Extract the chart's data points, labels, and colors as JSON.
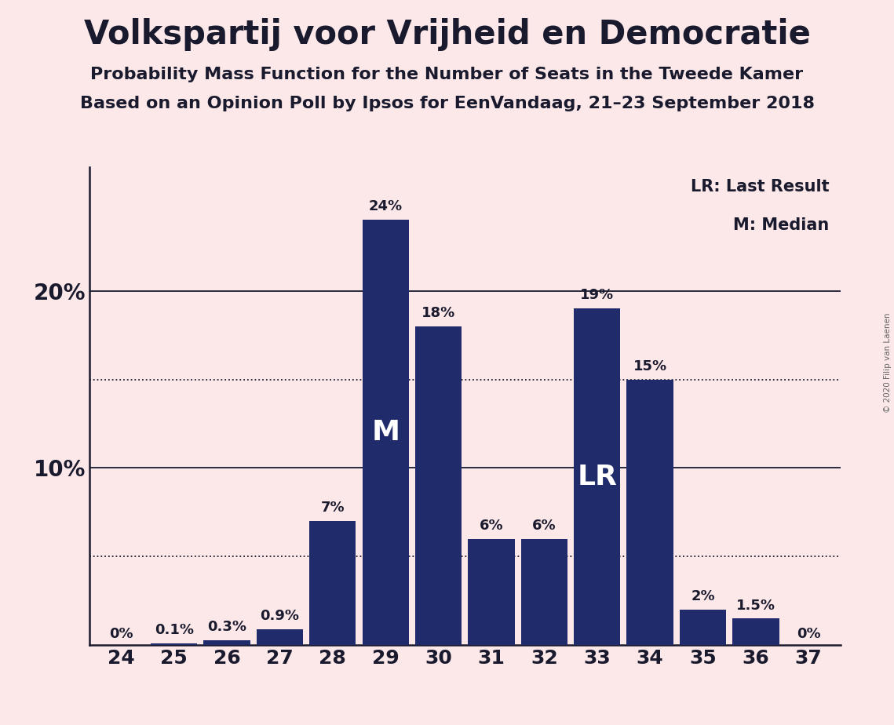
{
  "title": "Volkspartij voor Vrijheid en Democratie",
  "subtitle1": "Probability Mass Function for the Number of Seats in the Tweede Kamer",
  "subtitle2": "Based on an Opinion Poll by Ipsos for EenVandaag, 21–23 September 2018",
  "copyright": "© 2020 Filip van Laenen",
  "categories": [
    24,
    25,
    26,
    27,
    28,
    29,
    30,
    31,
    32,
    33,
    34,
    35,
    36,
    37
  ],
  "values": [
    0.0,
    0.1,
    0.3,
    0.9,
    7.0,
    24.0,
    18.0,
    6.0,
    6.0,
    19.0,
    15.0,
    2.0,
    1.5,
    0.0
  ],
  "labels": [
    "0%",
    "0.1%",
    "0.3%",
    "0.9%",
    "7%",
    "24%",
    "18%",
    "6%",
    "6%",
    "19%",
    "15%",
    "2%",
    "1.5%",
    "0%"
  ],
  "bar_color": "#1f2b6b",
  "background_color": "#fce8e8",
  "label_color": "#1a1a2e",
  "median_bar_index": 5,
  "lr_bar_index": 9,
  "median_label": "M",
  "lr_label": "LR",
  "dotted_lines": [
    5.0,
    15.0
  ],
  "solid_lines": [
    10.0,
    20.0
  ],
  "legend_lr": "LR: Last Result",
  "legend_m": "M: Median",
  "ylim": [
    0,
    27
  ],
  "title_fontsize": 30,
  "subtitle_fontsize": 16,
  "label_fontsize": 13,
  "tick_fontsize": 18,
  "ytick_fontsize": 20,
  "inner_label_fontsize": 26,
  "legend_fontsize": 15
}
